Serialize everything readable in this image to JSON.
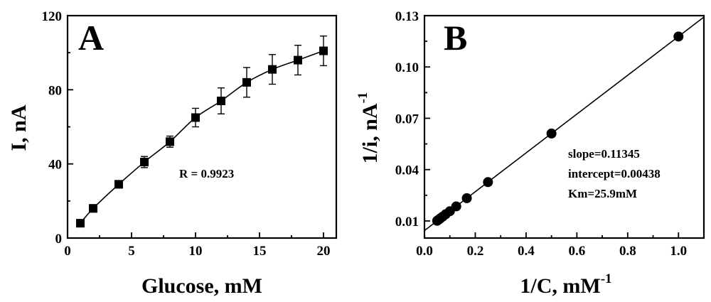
{
  "chart_data": [
    {
      "type": "line",
      "panel": "A",
      "xlabel": "Glucose, mM",
      "ylabel": "I, nA",
      "xlim": [
        0,
        21
      ],
      "ylim": [
        0,
        120
      ],
      "x_ticks": [
        0,
        5,
        10,
        15,
        20
      ],
      "y_ticks": [
        0,
        40,
        80,
        120
      ],
      "x": [
        1,
        2,
        4,
        6,
        8,
        10,
        12,
        14,
        16,
        18,
        20
      ],
      "y": [
        8,
        16,
        29,
        41,
        52,
        65,
        74,
        84,
        91,
        96,
        101
      ],
      "error": [
        1.5,
        2,
        2,
        3,
        3,
        5,
        7,
        8,
        8,
        8,
        8
      ],
      "marker": "square",
      "annotations": [
        "R = 0.9923"
      ]
    },
    {
      "type": "scatter",
      "panel": "B",
      "xlabel": "1/C, mM",
      "xlabel_sup": "-1",
      "ylabel": "1/i, nA",
      "ylabel_sup": "-1",
      "xlim": [
        0.0,
        1.1
      ],
      "ylim": [
        0.0,
        0.13
      ],
      "x_ticks": [
        "0.0",
        "0.2",
        "0.4",
        "0.6",
        "0.8",
        "1.0"
      ],
      "y_ticks": [
        "0.01",
        "0.04",
        "0.07",
        "0.10",
        "0.13"
      ],
      "x": [
        0.05,
        0.0556,
        0.0625,
        0.0714,
        0.0833,
        0.1,
        0.125,
        0.1667,
        0.25,
        0.5,
        1.0
      ],
      "y": [
        0.0101,
        0.0107,
        0.0115,
        0.0125,
        0.0139,
        0.0157,
        0.0185,
        0.0233,
        0.0327,
        0.0611,
        0.1178
      ],
      "fit": {
        "slope": 0.11345,
        "intercept": 0.00438
      },
      "marker": "circle",
      "annotations": [
        "slope=0.11345",
        "intercept=0.00438",
        "Km=25.9mM"
      ]
    }
  ]
}
